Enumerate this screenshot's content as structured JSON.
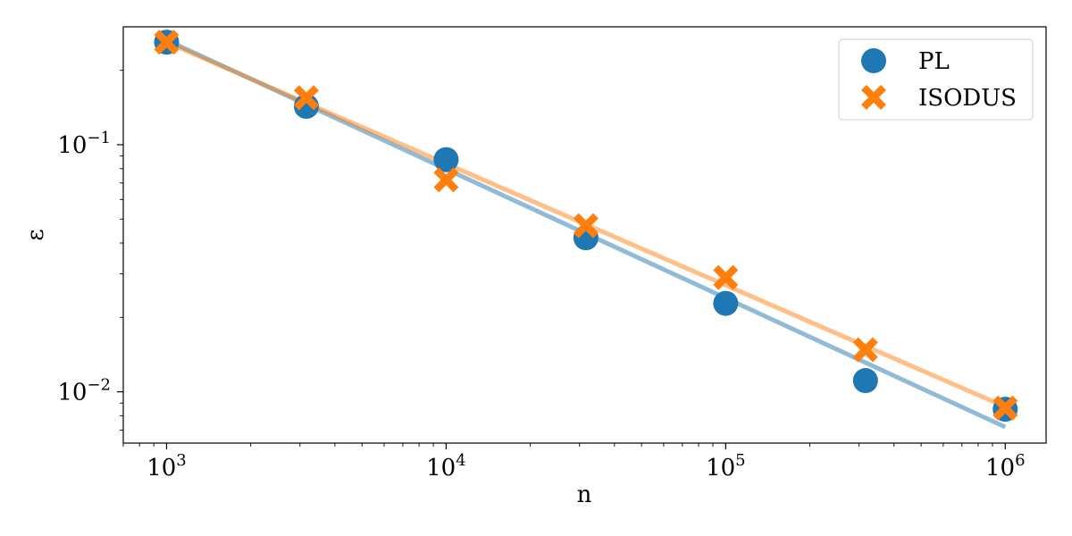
{
  "chart_data": {
    "type": "scatter",
    "title": "",
    "xlabel": "n",
    "ylabel": "ε",
    "x_scale": "log",
    "y_scale": "log",
    "xlim": [
      700,
      1400000
    ],
    "ylim": [
      0.0062,
      0.3
    ],
    "x_ticks": [
      {
        "value": 1000,
        "base": "10",
        "exp": "3"
      },
      {
        "value": 10000,
        "base": "10",
        "exp": "4"
      },
      {
        "value": 100000,
        "base": "10",
        "exp": "5"
      },
      {
        "value": 1000000,
        "base": "10",
        "exp": "6"
      }
    ],
    "y_ticks": [
      {
        "value": 0.1,
        "base": "10",
        "exp": "−1"
      },
      {
        "value": 0.01,
        "base": "10",
        "exp": "−2"
      }
    ],
    "grid": false,
    "legend_position": "top-right",
    "series": [
      {
        "name": "PL",
        "marker": "circle",
        "color": "#1f77b4",
        "x": [
          1000,
          3162,
          10000,
          31623,
          100000,
          316228,
          1000000
        ],
        "y": [
          0.26,
          0.143,
          0.087,
          0.042,
          0.0228,
          0.0111,
          0.0085
        ],
        "fit": {
          "x": [
            1000,
            1000000
          ],
          "y": [
            0.265,
            0.0072
          ],
          "color": "#1f77b4"
        }
      },
      {
        "name": "ISODUS",
        "marker": "x",
        "color": "#ff7f0e",
        "x": [
          1000,
          3162,
          10000,
          31623,
          100000,
          316228,
          1000000
        ],
        "y": [
          0.26,
          0.155,
          0.072,
          0.047,
          0.029,
          0.0148,
          0.0086
        ],
        "fit": {
          "x": [
            1000,
            1000000
          ],
          "y": [
            0.26,
            0.0087
          ],
          "color": "#ff7f0e"
        }
      }
    ]
  }
}
